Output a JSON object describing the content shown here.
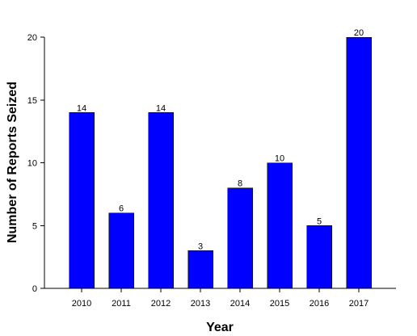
{
  "chart_data": {
    "type": "bar",
    "categories": [
      "2010",
      "2011",
      "2012",
      "2013",
      "2014",
      "2015",
      "2016",
      "2017"
    ],
    "values": [
      14,
      6,
      14,
      3,
      8,
      10,
      5,
      20
    ],
    "data_labels": [
      "14",
      "6",
      "14",
      "3",
      "8",
      "10",
      "5",
      "20"
    ],
    "title": "",
    "xlabel": "Year",
    "ylabel": "Number of Reports Seized",
    "ylim": [
      0,
      20
    ],
    "yticks": [
      0,
      5,
      10,
      15,
      20
    ],
    "ytick_labels": [
      "0",
      "5",
      "10",
      "15",
      "20"
    ],
    "grid": false,
    "legend": "none",
    "bar_color": "#0000FF"
  }
}
